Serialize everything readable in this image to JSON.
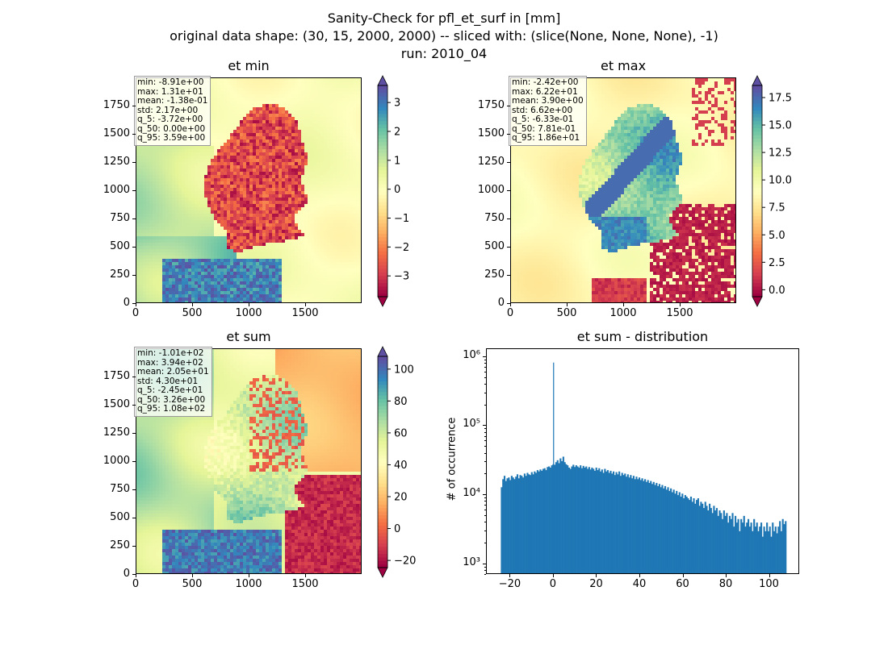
{
  "figure": {
    "title_line1": "Sanity-Check for pfl_et_surf in [mm]",
    "title_line2": "original data shape: (30, 15, 2000, 2000) -- sliced with: (slice(None, None, None), -1)",
    "title_line3": "run: 2010_04"
  },
  "colormap": {
    "name": "Spectral",
    "stops": [
      "#9e0142",
      "#d53e4f",
      "#f46d43",
      "#fdae61",
      "#fee08b",
      "#ffffbf",
      "#e6f598",
      "#abdda4",
      "#66c2a5",
      "#3288bd",
      "#5e4fa2"
    ]
  },
  "panels": [
    {
      "title": "et min",
      "stats": "min: -8.91e+00\nmax: 1.31e+01\nmean: -1.38e-01\nstd: 2.17e+00\nq_5: -3.72e+00\nq_50: 0.00e+00\nq_95: 3.59e+00",
      "x_ticks": [
        "0",
        "500",
        "1000",
        "1500"
      ],
      "y_ticks": [
        "0",
        "250",
        "500",
        "750",
        "1000",
        "1250",
        "1500",
        "1750"
      ],
      "vmin": -3.72,
      "vmax": 3.59,
      "extend": "both",
      "cbar_ticks": [
        -3,
        -2,
        -1,
        0,
        1,
        2,
        3
      ],
      "cbar_labels": [
        "−3",
        "−2",
        "−1",
        "0",
        "1",
        "2",
        "3"
      ]
    },
    {
      "title": "et max",
      "stats": "min: -2.42e+00\nmax: 6.22e+01\nmean: 3.90e+00\nstd: 6.62e+00\nq_5: -6.33e-01\nq_50: 7.81e-01\nq_95: 1.86e+01",
      "x_ticks": [
        "0",
        "500",
        "1000",
        "1500"
      ],
      "y_ticks": [
        "0",
        "250",
        "500",
        "750",
        "1000",
        "1250",
        "1500",
        "1750"
      ],
      "vmin": -0.633,
      "vmax": 18.6,
      "extend": "both",
      "cbar_ticks": [
        0.0,
        2.5,
        5.0,
        7.5,
        10.0,
        12.5,
        15.0,
        17.5
      ],
      "cbar_labels": [
        "0.0",
        "2.5",
        "5.0",
        "7.5",
        "10.0",
        "12.5",
        "15.0",
        "17.5"
      ]
    },
    {
      "title": "et sum",
      "stats": "min: -1.01e+02\nmax: 3.94e+02\nmean: 2.05e+01\nstd: 4.30e+01\nq_5: -2.45e+01\nq_50: 3.26e+00\nq_95: 1.08e+02",
      "x_ticks": [
        "0",
        "500",
        "1000",
        "1500"
      ],
      "y_ticks": [
        "0",
        "250",
        "500",
        "750",
        "1000",
        "1250",
        "1500",
        "1750"
      ],
      "vmin": -24.5,
      "vmax": 108,
      "extend": "both",
      "cbar_ticks": [
        -20,
        0,
        20,
        40,
        60,
        80,
        100
      ],
      "cbar_labels": [
        "−20",
        "0",
        "20",
        "40",
        "60",
        "80",
        "100"
      ]
    }
  ],
  "chart_data": [
    {
      "type": "heatmap",
      "title": "et min",
      "xlim": [
        0,
        2000
      ],
      "ylim": [
        0,
        2000
      ],
      "color_range": [
        -3.72,
        3.59
      ]
    },
    {
      "type": "heatmap",
      "title": "et max",
      "xlim": [
        0,
        2000
      ],
      "ylim": [
        0,
        2000
      ],
      "color_range": [
        -0.633,
        18.6
      ]
    },
    {
      "type": "heatmap",
      "title": "et sum",
      "xlim": [
        0,
        2000
      ],
      "ylim": [
        0,
        2000
      ],
      "color_range": [
        -24.5,
        108
      ]
    },
    {
      "type": "bar",
      "title": "et sum - distribution",
      "xlabel": "",
      "ylabel": "# of occurrence",
      "yscale": "log",
      "xlim": [
        -31,
        114
      ],
      "ylim": [
        700,
        1300000
      ],
      "bar_color": "#1f77b4",
      "x_ticks": [
        -20,
        0,
        20,
        40,
        60,
        80,
        100
      ],
      "x_tick_labels": [
        "−20",
        "0",
        "20",
        "40",
        "60",
        "80",
        "100"
      ],
      "y_ticks": [
        1000,
        10000,
        100000,
        1000000
      ],
      "y_tick_labels": [
        "10³",
        "10⁴",
        "10⁵",
        "10⁶"
      ],
      "bin_start": -24.5,
      "bin_width": 0.664,
      "peak": {
        "x": -0.3,
        "count": 830000
      },
      "counts": [
        13000,
        17000,
        19000,
        16000,
        17500,
        18000,
        16500,
        19000,
        18000,
        17000,
        18500,
        20000,
        17500,
        19500,
        19000,
        18000,
        20500,
        19000,
        21000,
        20000,
        19500,
        21500,
        20000,
        22000,
        21000,
        23000,
        22000,
        23500,
        22500,
        24000,
        24500,
        23000,
        25500,
        26000,
        25000,
        27000,
        28000,
        27500,
        30000,
        32000,
        29000,
        34000,
        31000,
        36000,
        30000,
        28000,
        27000,
        25000,
        24000,
        26000,
        27500,
        25500,
        27000,
        26000,
        25000,
        27000,
        24500,
        26500,
        25000,
        26000,
        24000,
        25500,
        23500,
        25000,
        24000,
        22500,
        25000,
        23000,
        24500,
        22000,
        23500,
        21000,
        24000,
        22000,
        23000,
        21000,
        22500,
        20500,
        22000,
        19500,
        21500,
        20000,
        22000,
        19000,
        21000,
        19500,
        20500,
        18500,
        20000,
        18000,
        19500,
        17500,
        19000,
        17000,
        18500,
        17000,
        18000,
        16500,
        17500,
        16000,
        17000,
        15500,
        16500,
        15000,
        16000,
        14500,
        15500,
        14000,
        15000,
        13500,
        14500,
        13000,
        14000,
        12500,
        13500,
        12000,
        13000,
        11500,
        12500,
        11000,
        12000,
        10500,
        11500,
        10000,
        11000,
        9500,
        10500,
        9000,
        10000,
        9500,
        9000,
        8500,
        9500,
        8000,
        9000,
        7500,
        8500,
        9000,
        7000,
        8000,
        7500,
        6500,
        8000,
        7000,
        6000,
        7500,
        6500,
        5500,
        7000,
        6000,
        6500,
        5000,
        6000,
        5500,
        4500,
        6000,
        5000,
        5500,
        4000,
        5000,
        4500,
        5500,
        3500,
        5000,
        4000,
        4500,
        3000,
        4500,
        4000,
        5000,
        3500,
        4000,
        4500,
        3500,
        4000,
        3000,
        4500,
        3500,
        4000,
        3000,
        3500,
        4000,
        2500,
        3500,
        3000,
        4000,
        3000,
        3500,
        2500,
        4000,
        3000,
        3500,
        2800,
        3500,
        4200,
        3000,
        4500,
        3800,
        4200
      ]
    }
  ]
}
